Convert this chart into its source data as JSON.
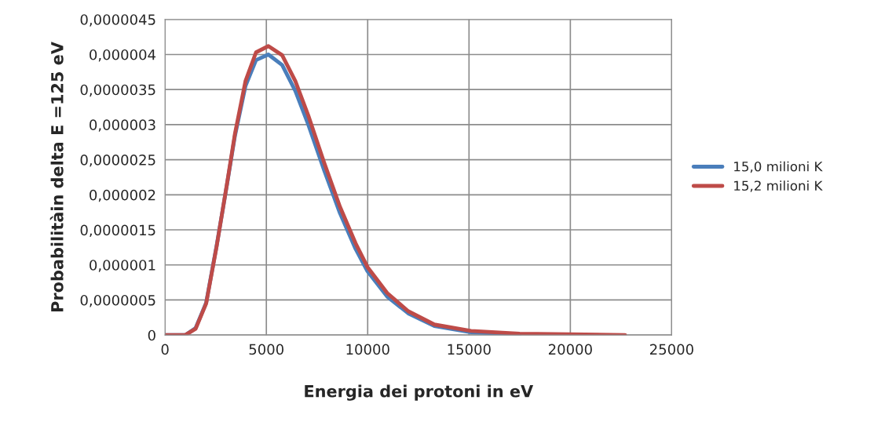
{
  "chart_data": {
    "type": "line",
    "xlabel": "Energia dei protoni in eV",
    "ylabel": "Probabilitàin delta E =125 eV",
    "xlim": [
      0,
      25000
    ],
    "xticks": [
      0,
      5000,
      10000,
      15000,
      20000,
      25000
    ],
    "ylim": [
      0,
      4.5e-06
    ],
    "yticks": [
      {
        "value": 0,
        "label": "0"
      },
      {
        "value": 5e-07,
        "label": "0,0000005"
      },
      {
        "value": 1e-06,
        "label": "0,000001"
      },
      {
        "value": 1.5e-06,
        "label": "0,0000015"
      },
      {
        "value": 2e-06,
        "label": "0,000002"
      },
      {
        "value": 2.5e-06,
        "label": "0,0000025"
      },
      {
        "value": 3e-06,
        "label": "0,000003"
      },
      {
        "value": 3.5e-06,
        "label": "0,0000035"
      },
      {
        "value": 4e-06,
        "label": "0,000004"
      },
      {
        "value": 4.5e-06,
        "label": "0,0000045"
      }
    ],
    "grid": true,
    "legend": "right",
    "marker": "none",
    "line_style": "solid",
    "x": [
      0,
      1000,
      1510,
      2030,
      2550,
      3060,
      3450,
      3970,
      4490,
      5100,
      5780,
      6430,
      7070,
      7850,
      8630,
      9400,
      9990,
      10960,
      12000,
      13290,
      15100,
      17500,
      20000,
      22700
    ],
    "series": [
      {
        "name": "15,0 milioni K",
        "color": "#4a7ebb",
        "values": [
          0,
          0,
          1e-07,
          4.6e-07,
          1.28e-06,
          2.15e-06,
          2.84e-06,
          3.55e-06,
          3.92e-06,
          4e-06,
          3.85e-06,
          3.48e-06,
          3e-06,
          2.35e-06,
          1.74e-06,
          1.23e-06,
          9.1e-07,
          5.5e-07,
          3.1e-07,
          1.3e-07,
          4e-08,
          1e-08,
          null,
          null
        ]
      },
      {
        "name": "15,2 milioni K",
        "color": "#be4b48",
        "values": [
          0,
          0,
          9e-08,
          4.5e-07,
          1.27e-06,
          2.16e-06,
          2.87e-06,
          3.62e-06,
          4.03e-06,
          4.12e-06,
          3.99e-06,
          3.62e-06,
          3.13e-06,
          2.46e-06,
          1.83e-06,
          1.31e-06,
          9.7e-07,
          6e-07,
          3.4e-07,
          1.5e-07,
          6e-08,
          2e-08,
          1e-08,
          0
        ]
      }
    ]
  }
}
